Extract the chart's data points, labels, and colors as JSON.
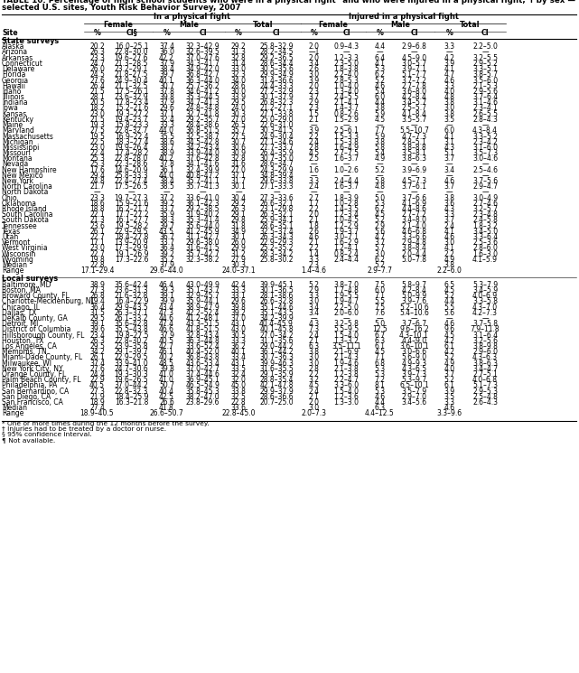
{
  "title": "TABLE 10. Percentage of high school students who were in a physical fight* and who were injured in a physical fight,*† by sex —",
  "title2": "selected U.S. sites, Youth Risk Behavior Survey, 2007",
  "section1": "State surveys",
  "state_rows": [
    [
      "Alaska",
      "20.2",
      "16.0–25.1",
      "37.4",
      "32.3–42.9",
      "29.2",
      "25.8–32.9",
      "2.0",
      "0.9–4.3",
      "4.4",
      "2.9–6.8",
      "3.3",
      "2.2–5.0"
    ],
    [
      "Arizona",
      "26.3",
      "22.8–30.0",
      "36.0",
      "32.6–39.5",
      "31.3",
      "28.2–34.5",
      "—1",
      "—",
      "—",
      "—",
      "—",
      "—"
    ],
    [
      "Arkansas",
      "23.3",
      "19.6–27.6",
      "42.2",
      "37.0–47.6",
      "32.8",
      "29.2–36.5",
      "2.0",
      "1.2–3.3",
      "6.4",
      "4.5–9.0",
      "4.2",
      "3.2–5.5"
    ],
    [
      "Connecticut",
      "24.7",
      "21.3–28.5",
      "37.9",
      "34.3–41.7",
      "31.4",
      "28.6–34.4",
      "3.4",
      "2.3–5.0",
      "4.1",
      "3.0–5.7",
      "3.9",
      "2.9–5.2"
    ],
    [
      "Delaware",
      "26.0",
      "23.2–29.1",
      "38.4",
      "34.9–42.0",
      "33.0",
      "30.5–35.6",
      "2.6",
      "1.8–3.8",
      "5.3",
      "3.9–7.1",
      "4.1",
      "3.3–5.1"
    ],
    [
      "Florida",
      "24.5",
      "21.8–27.5",
      "39.7",
      "36.8–42.7",
      "32.3",
      "29.9–34.9",
      "3.0",
      "2.2–4.0",
      "6.2",
      "5.1–7.7",
      "4.7",
      "3.8–5.7"
    ],
    [
      "Georgia",
      "27.6",
      "24.9–30.4",
      "40.1",
      "36.3–44.0",
      "34.0",
      "31.4–36.6",
      "3.9",
      "2.8–5.3",
      "5.2",
      "3.7–7.2",
      "4.6",
      "3.5–6.0"
    ],
    [
      "Hawaii",
      "26.4",
      "21.1–32.5",
      "30.7",
      "25.7–36.2",
      "28.6",
      "24.4–33.3",
      "2.0",
      "1.0–4.0",
      "4.6",
      "2.7–7.8",
      "3.3",
      "2.1–5.3"
    ],
    [
      "Idaho",
      "21.5",
      "17.5–26.1",
      "37.8",
      "34.6–41.2",
      "30.0",
      "27.2–32.9",
      "2.3",
      "1.3–4.0",
      "5.4",
      "3.6–8.0",
      "4.0",
      "2.9–5.6"
    ],
    [
      "Illinois",
      "28.1",
      "23.6–32.9",
      "39.8",
      "35.3–44.5",
      "33.9",
      "30.1–37.9",
      "3.7",
      "2.4–5.5",
      "6.0",
      "4.2–8.4",
      "4.8",
      "3.7–6.4"
    ],
    [
      "Indiana",
      "20.5",
      "17.8–23.4",
      "37.9",
      "34.7–41.3",
      "29.5",
      "26.8–32.3",
      "2.9",
      "2.1–4.1",
      "4.4",
      "3.4–5.7",
      "3.8",
      "3.1–4.6"
    ],
    [
      "Iowa",
      "18.2",
      "15.2–21.6",
      "29.6",
      "24.8–34.8",
      "24.0",
      "21.2–27.1",
      "2.3",
      "1.4–3.7",
      "3.8",
      "2.5–5.7",
      "3.0",
      "2.3–4.1"
    ],
    [
      "Kansas",
      "23.0",
      "19.3–27.2",
      "37.1",
      "32.7–41.8",
      "30.3",
      "27.1–33.8",
      "1.5",
      "0.8–2.6",
      "5.9",
      "4.1–8.4",
      "3.8",
      "2.6–5.5"
    ],
    [
      "Kentucky",
      "21.5",
      "19.4–23.7",
      "32.4",
      "29.2–35.7",
      "27.0",
      "25.0–29.0",
      "2.1",
      "1.5–2.9",
      "4.5",
      "3.5–5.7",
      "3.5",
      "2.8–4.3"
    ],
    [
      "Maine",
      "19.3",
      "15.8–23.3",
      "33.3",
      "28.4–38.6",
      "26.5",
      "22.6–31.0",
      "—",
      "—",
      "—",
      "—",
      "—",
      "—"
    ],
    [
      "Maryland",
      "27.5",
      "22.8–32.7",
      "44.0",
      "36.8–51.5",
      "35.7",
      "30.3–41.5",
      "3.9",
      "2.5–6.1",
      "7.7",
      "5.5–10.7",
      "6.0",
      "4.3–8.4"
    ],
    [
      "Massachusetts",
      "19.5",
      "16.9–22.4",
      "35.5",
      "32.5–38.7",
      "27.5",
      "24.9–30.4",
      "2.2",
      "1.5–3.3",
      "5.9",
      "4.7–7.3",
      "4.1",
      "3.3–5.2"
    ],
    [
      "Michigan",
      "22.5",
      "18.3–27.4",
      "38.6",
      "34.5–42.8",
      "30.7",
      "27.1–34.6",
      "2.4",
      "1.5–3.8",
      "3.8",
      "2.8–5.1",
      "3.1",
      "2.3–4.2"
    ],
    [
      "Mississippi",
      "23.0",
      "19.9–26.4",
      "38.7",
      "34.2–43.4",
      "30.6",
      "27.7–33.7",
      "2.8",
      "1.6–4.9",
      "5.8",
      "3.8–8.8",
      "4.3",
      "3.1–6.0"
    ],
    [
      "Missouri",
      "22.4",
      "17.4–28.2",
      "38.9",
      "33.9–44.0",
      "30.9",
      "26.4–35.9",
      "4.5",
      "2.7–7.5",
      "5.4",
      "3.5–8.1",
      "5.1",
      "3.5–7.3"
    ],
    [
      "Montana",
      "25.3",
      "22.8–28.0",
      "40.2",
      "37.6–42.8",
      "32.8",
      "30.7–35.0",
      "2.5",
      "1.6–3.7",
      "4.9",
      "3.8–6.3",
      "3.7",
      "3.0–4.6"
    ],
    [
      "Nevada",
      "25.3",
      "22.3–28.6",
      "37.8",
      "34.1–41.6",
      "31.6",
      "28.6–34.7",
      "—",
      "—",
      "—",
      "—",
      "—",
      "—"
    ],
    [
      "New Hampshire",
      "17.6",
      "14.6–20.9",
      "36.1",
      "32.4–39.9",
      "27.0",
      "24.3–29.9",
      "1.6",
      "1.0–2.6",
      "5.2",
      "3.9–6.9",
      "3.4",
      "2.5–4.6"
    ],
    [
      "New Mexico",
      "29.4",
      "25.8–33.3",
      "44.0",
      "40.8–47.2",
      "37.1",
      "34.8–39.4",
      "—",
      "—",
      "—",
      "—",
      "—",
      "—"
    ],
    [
      "New York",
      "24.8",
      "22.4–27.4",
      "38.4",
      "35.7–41.1",
      "31.7",
      "29.6–33.8",
      "3.3",
      "2.4–4.4",
      "5.8",
      "4.5–7.3",
      "4.6",
      "3.7–5.6"
    ],
    [
      "North Carolina",
      "21.7",
      "17.5–26.5",
      "38.5",
      "35.7–41.3",
      "30.1",
      "27.1–33.3",
      "2.4",
      "1.6–3.7",
      "4.8",
      "3.7–6.1",
      "3.7",
      "2.9–4.7"
    ],
    [
      "North Dakota",
      "—",
      "—",
      "—",
      "—",
      "—",
      "—",
      "—",
      "—",
      "—",
      "—",
      "—",
      "—"
    ],
    [
      "Ohio",
      "23.3",
      "19.7–27.3",
      "37.2",
      "33.6–41.0",
      "30.4",
      "27.3–33.6",
      "2.7",
      "1.8–3.9",
      "5.0",
      "3.7–6.6",
      "3.8",
      "3.0–4.9"
    ],
    [
      "Oklahoma",
      "18.6",
      "15.9–21.6",
      "39.2",
      "36.1–42.3",
      "29.2",
      "26.6–32.1",
      "1.7",
      "1.0–2.8",
      "5.3",
      "4.1–6.9",
      "3.6",
      "2.7–4.6"
    ],
    [
      "Rhode Island",
      "18.8",
      "16.2–21.7",
      "33.7",
      "29.2–38.5",
      "26.3",
      "23.1–29.8",
      "2.2",
      "1.4–3.5",
      "6.2",
      "4.4–8.6",
      "4.3",
      "3.2–5.7"
    ],
    [
      "South Carolina",
      "22.1",
      "17.7–27.2",
      "35.9",
      "31.9–40.2",
      "29.1",
      "26.3–32.1",
      "2.0",
      "1.2–3.4",
      "4.5",
      "2.7–7.2",
      "3.3",
      "2.3–4.8"
    ],
    [
      "South Dakota",
      "21.3",
      "16.1–27.7",
      "38.3",
      "35.3–41.4",
      "29.8",
      "25.9–34.1",
      "2.1",
      "1.0–4.5",
      "5.2",
      "3.4–8.0",
      "3.7",
      "2.4–5.8"
    ],
    [
      "Tennessee",
      "23.6",
      "19.5–28.2",
      "39.7",
      "35.6–44.0",
      "31.8",
      "28.6–35.1",
      "1.8",
      "1.2–2.9",
      "2.9",
      "2.1–4.0",
      "2.4",
      "1.8–3.2"
    ],
    [
      "Texas",
      "26.1",
      "22.9–29.5",
      "43.5",
      "41.2–45.9",
      "34.9",
      "32.5–37.4",
      "2.6",
      "1.9–3.7",
      "5.6",
      "4.6–6.8",
      "4.1",
      "3.4–5.0"
    ],
    [
      "Utah",
      "22.7",
      "18.4–27.8",
      "36.7",
      "31.1–42.7",
      "30.1",
      "26.3–34.3",
      "4.6",
      "3.0–7.1",
      "4.7",
      "3.3–6.6",
      "4.6",
      "3.3–6.4"
    ],
    [
      "Vermont",
      "17.1",
      "13.9–20.9",
      "33.7",
      "29.6–38.0",
      "26.0",
      "22.9–29.3",
      "2.1",
      "1.6–2.9",
      "3.7",
      "2.9–4.8",
      "3.0",
      "2.5–3.6"
    ],
    [
      "West Virginia",
      "23.0",
      "17.3–29.9",
      "36.4",
      "31.6–41.5",
      "29.9",
      "25.2–35.2",
      "2.2",
      "1.2–4.1",
      "5.7",
      "3.8–8.4",
      "4.1",
      "2.8–6.0"
    ],
    [
      "Wisconsin",
      "22.7",
      "19.1–26.9",
      "39.2",
      "35.7–42.7",
      "31.2",
      "28.3–34.2",
      "1.4",
      "0.8–2.4",
      "3.0",
      "2.0–4.4",
      "2.2",
      "1.6–3.0"
    ],
    [
      "Wyoming",
      "19.8",
      "17.3–22.6",
      "35.2",
      "32.3–38.2",
      "27.9",
      "25.8–30.2",
      "3.3",
      "2.4–4.4",
      "6.2",
      "5.0–7.8",
      "4.9",
      "4.1–5.9"
    ]
  ],
  "state_median": [
    "Median",
    "22.8",
    "",
    "37.9",
    "",
    "30.3",
    "",
    "2.3",
    "",
    "5.2",
    "",
    "3.8",
    ""
  ],
  "state_range": [
    "Range",
    "17.1–29.4",
    "",
    "29.6–44.0",
    "",
    "24.0–37.1",
    "",
    "1.4–4.6",
    "",
    "2.9–7.7",
    "",
    "2.2–6.0",
    ""
  ],
  "section2": "Local surveys",
  "local_rows": [
    [
      "Baltimore, MD",
      "38.9",
      "35.6–42.4",
      "46.4",
      "43.0–49.9",
      "42.4",
      "39.9–45.1",
      "5.2",
      "3.8–7.0",
      "7.5",
      "5.8–9.7",
      "6.5",
      "5.3–7.9"
    ],
    [
      "Boston, MA",
      "27.3",
      "23.6–31.3",
      "39.3",
      "35.1–43.7",
      "33.3",
      "30.1–36.5",
      "2.9",
      "1.7–4.8",
      "6.0",
      "4.2–8.4",
      "4.5",
      "3.4–5.9"
    ],
    [
      "Broward County, FL",
      "26.8",
      "21.6–32.8",
      "39.1",
      "32.9–45.7",
      "33.1",
      "28.1–38.6",
      "3.3",
      "1.9–5.5",
      "7.1",
      "5.0–9.9",
      "5.2",
      "4.0–6.9"
    ],
    [
      "Charlotte-Mecklenburg, NC",
      "19.4",
      "16.4–22.9",
      "39.9",
      "35.9–44.1",
      "29.6",
      "26.6–32.8",
      "3.0",
      "1.9–4.7",
      "5.5",
      "3.9–7.6",
      "4.4",
      "3.3–5.8"
    ],
    [
      "Chicago, IL",
      "36.4",
      "29.9–43.5",
      "43.4",
      "38.9–47.9",
      "39.8",
      "35.1–44.6",
      "3.4",
      "2.2–5.0",
      "7.5",
      "5.2–10.6",
      "5.5",
      "4.3–7.0"
    ],
    [
      "Dallas, TX",
      "31.5",
      "26.3–37.1",
      "47.3",
      "42.2–52.4",
      "39.2",
      "35.1–43.5",
      "3.4",
      "2.0–6.0",
      "7.6",
      "5.4–10.6",
      "5.6",
      "4.2–7.3"
    ],
    [
      "DeKalb County, GA",
      "29.5",
      "26.1–33.2",
      "44.6",
      "41.2–48.1",
      "37.0",
      "34.2–39.9",
      "—",
      "—",
      "—",
      "—",
      "—",
      "—"
    ],
    [
      "Detroit, MI",
      "39.1",
      "35.6–42.8",
      "47.4",
      "43.3–51.5",
      "43.1",
      "40.4–45.9",
      "4.3",
      "3.2–5.8",
      "5.0",
      "3.7–6.7",
      "4.6",
      "3.7–5.8"
    ],
    [
      "District of Columbia",
      "39.6",
      "35.5–43.8",
      "46.6",
      "41.8–51.5",
      "43.0",
      "40.1–45.8",
      "7.3",
      "5.5–9.5",
      "12.5",
      "9.6–16.2",
      "9.6",
      "7.9–11.8"
    ],
    [
      "Hillsborough County, FL",
      "23.4",
      "19.8–27.5",
      "37.9",
      "32.8–43.4",
      "30.5",
      "27.0–34.2",
      "2.4",
      "1.5–4.0",
      "6.7",
      "4.3–10.1",
      "4.5",
      "3.1–6.4"
    ],
    [
      "Houston, TX",
      "26.3",
      "22.8–30.2",
      "40.5",
      "36.3–44.8",
      "33.3",
      "31.1–35.6",
      "2.1",
      "1.3–3.2",
      "6.3",
      "4.4–9.0",
      "4.2",
      "3.2–5.6"
    ],
    [
      "Los Angeles, CA",
      "29.5",
      "23.9–35.8",
      "42.7",
      "33.6–52.4",
      "36.2",
      "29.0–44.2",
      "6.3",
      "3.5–11.1",
      "6.1",
      "3.6–10.1",
      "6.1",
      "3.8–9.8"
    ],
    [
      "Memphis, TN",
      "34.2",
      "29.1–39.7",
      "46.1",
      "40.4–52.0",
      "40.1",
      "36.1–44.2",
      "3.8",
      "2.1–6.9",
      "4.5",
      "3.0–6.6",
      "4.2",
      "2.9–6.0"
    ],
    [
      "Miami-Dade County, FL",
      "26.1",
      "22.9–29.5",
      "40.2",
      "36.8–43.8",
      "33.4",
      "30.7–36.3",
      "3.0",
      "2.1–4.3",
      "7.1",
      "5.6–9.0",
      "5.2",
      "4.3–6.3"
    ],
    [
      "Milwaukee, WI",
      "37.4",
      "33.9–41.0",
      "48.5",
      "43.6–53.4",
      "43.1",
      "39.9–46.3",
      "3.0",
      "1.9–4.6",
      "6.8",
      "4.9–9.3",
      "4.9",
      "3.8–6.3"
    ],
    [
      "New York City, NY",
      "27.6",
      "24.7–30.6",
      "39.8",
      "37.0–42.7",
      "33.5",
      "31.6–35.5",
      "2.8",
      "2.1–3.8",
      "5.3",
      "4.3–6.5",
      "4.0",
      "3.4–4.7"
    ],
    [
      "Orange County, FL",
      "24.4",
      "19.3–30.3",
      "41.0",
      "37.4–44.6",
      "32.4",
      "29.1–35.9",
      "2.2",
      "1.2–3.8",
      "5.3",
      "3.9–7.3",
      "3.7",
      "2.7–5.1"
    ],
    [
      "Palm Beach County, FL",
      "22.9",
      "19.6–26.5",
      "41.0",
      "36.9–45.1",
      "32.0",
      "28.8–35.4",
      "3.2",
      "2.2–4.7",
      "7.2",
      "5.3–9.7",
      "5.2",
      "4.0–6.8"
    ],
    [
      "Philadelphia, PA",
      "40.5",
      "37.0–44.2",
      "50.7",
      "46.5–54.9",
      "45.0",
      "42.1–47.8",
      "4.5",
      "3.3–6.0",
      "8.1",
      "6.5–10.1",
      "6.1",
      "5.1–7.3"
    ],
    [
      "San Bernardino, CA",
      "27.3",
      "22.8–32.3",
      "40.4",
      "35.8–45.3",
      "33.8",
      "29.9–37.9",
      "2.4",
      "1.5–4.0",
      "5.3",
      "3.5–7.9",
      "3.9",
      "2.9–5.3"
    ],
    [
      "San Diego, CA",
      "21.9",
      "18.4–25.9",
      "42.5",
      "38.2–47.0",
      "32.5",
      "28.6–36.6",
      "2.1",
      "1.2–3.6",
      "4.6",
      "2.9–7.0",
      "3.5",
      "2.5–4.8"
    ],
    [
      "San Francisco, CA",
      "18.9",
      "16.3–21.8",
      "26.6",
      "23.8–29.6",
      "22.8",
      "20.7–25.0",
      "2.0",
      "1.3–3.0",
      "4.4",
      "3.4–5.6",
      "3.3",
      "2.6–4.3"
    ]
  ],
  "local_median": [
    "Median",
    "27.4",
    "",
    "41.8",
    "",
    "33.6",
    "",
    "3.0",
    "",
    "6.3",
    "",
    "4.6",
    ""
  ],
  "local_range": [
    "Range",
    "18.9–40.5",
    "",
    "26.6–50.7",
    "",
    "22.8–45.0",
    "",
    "2.0–7.3",
    "",
    "4.4–12.5",
    "",
    "3.3–9.6",
    ""
  ],
  "footnotes": [
    "* One or more times during the 12 months before the survey.",
    "† Injuries had to be treated by a doctor or nurse.",
    "§ 95% confidence interval.",
    "¶ Not available."
  ],
  "col_labels": [
    "Site",
    "%",
    "CI§",
    "%",
    "CI",
    "%",
    "CI",
    "%",
    "CI",
    "%",
    "CI",
    "%",
    "CI"
  ]
}
